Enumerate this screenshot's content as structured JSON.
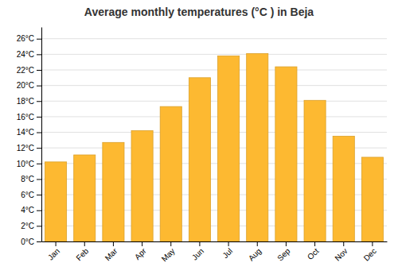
{
  "chart_data": {
    "type": "bar",
    "title": "Average monthly temperatures (°C ) in Beja",
    "categories": [
      "Jan",
      "Feb",
      "Mar",
      "Apr",
      "May",
      "Jun",
      "Jul",
      "Aug",
      "Sep",
      "Oct",
      "Nov",
      "Dec"
    ],
    "values": [
      10.2,
      11.1,
      12.7,
      14.2,
      17.3,
      21.0,
      23.8,
      24.1,
      22.4,
      18.1,
      13.5,
      10.8
    ],
    "color": "#FDB931",
    "ylim": [
      0,
      27.5
    ],
    "yticks": [
      {
        "value": 0,
        "label": "0°C"
      },
      {
        "value": 2,
        "label": "2°C"
      },
      {
        "value": 4,
        "label": "4°C"
      },
      {
        "value": 6,
        "label": "6°C"
      },
      {
        "value": 8,
        "label": "8°C"
      },
      {
        "value": 10,
        "label": "10°C"
      },
      {
        "value": 12,
        "label": "12°C"
      },
      {
        "value": 14,
        "label": "14°C"
      },
      {
        "value": 16,
        "label": "16°C"
      },
      {
        "value": 18,
        "label": "18°C"
      },
      {
        "value": 20,
        "label": "20°C"
      },
      {
        "value": 22,
        "label": "22°C"
      },
      {
        "value": 24,
        "label": "24°C"
      },
      {
        "value": 26,
        "label": "26°C"
      }
    ],
    "grid": true
  }
}
